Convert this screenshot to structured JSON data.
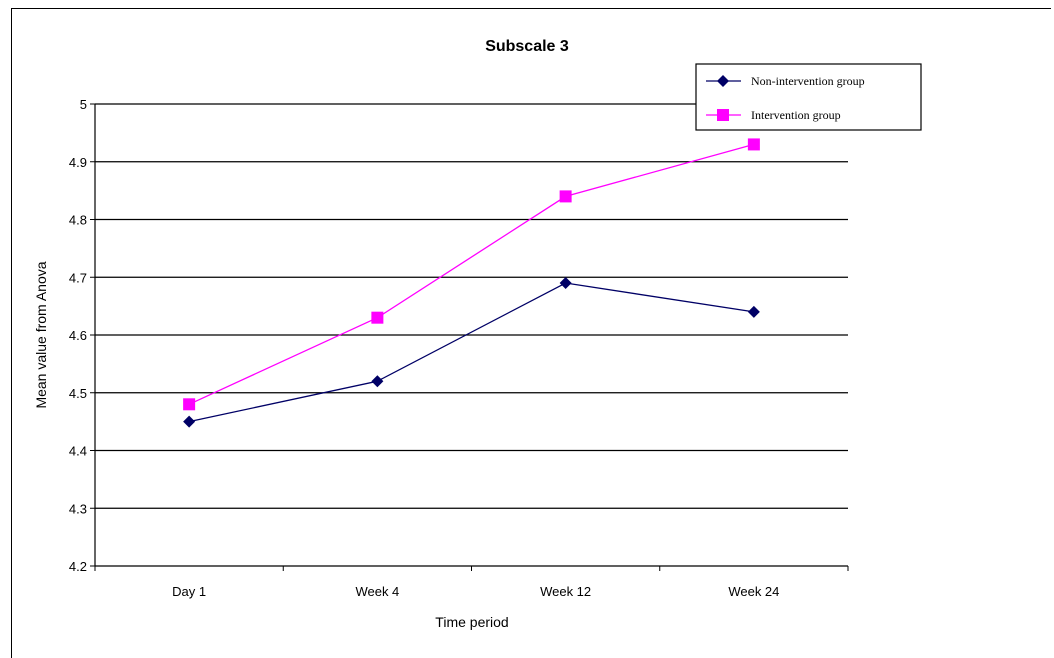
{
  "chart_data": {
    "type": "line",
    "title": "Subscale 3",
    "xlabel": "Time period",
    "ylabel": "Mean value from Anova",
    "categories": [
      "Day 1",
      "Week 4",
      "Week 12",
      "Week 24"
    ],
    "ylim": [
      4.2,
      5
    ],
    "yticks": [
      "4.2",
      "4.3",
      "4.4",
      "4.5",
      "4.6",
      "4.7",
      "4.8",
      "4.9",
      "5"
    ],
    "grid": true,
    "legend_position": "top-right",
    "series": [
      {
        "name": "Non-intervention group",
        "values": [
          4.45,
          4.52,
          4.69,
          4.64
        ],
        "color": "#000066",
        "marker": "diamond"
      },
      {
        "name": "Intervention group",
        "values": [
          4.48,
          4.63,
          4.84,
          4.93
        ],
        "color": "#ff00ff",
        "marker": "square"
      }
    ]
  }
}
